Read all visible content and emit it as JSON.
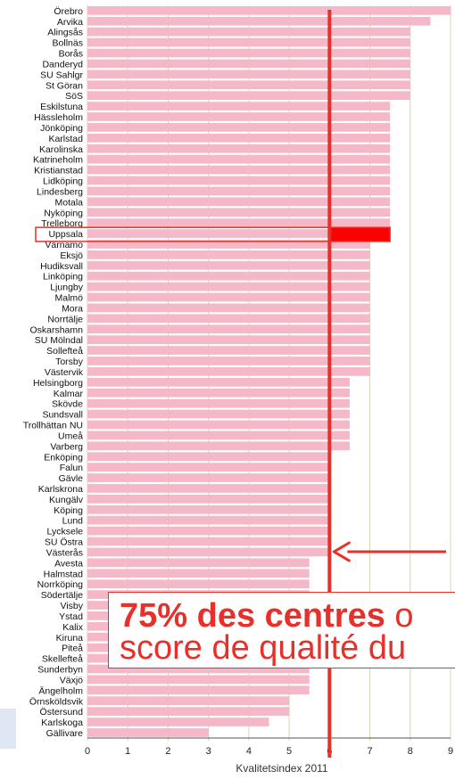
{
  "chart_data": {
    "type": "bar",
    "orientation": "horizontal",
    "categories": [
      "Örebro",
      "Arvika",
      "Alingsås",
      "Bollnäs",
      "Borås",
      "Danderyd",
      "SU Sahlgr",
      "St Göran",
      "SöS",
      "Eskilstuna",
      "Hässleholm",
      "Jönköping",
      "Karlstad",
      "Karolinska",
      "Katrineholm",
      "Kristianstad",
      "Lidköping",
      "Lindesberg",
      "Motala",
      "Nyköping",
      "Trelleborg",
      "Uppsala",
      "Värnamo",
      "Eksjö",
      "Hudiksvall",
      "Linköping",
      "Ljungby",
      "Malmö",
      "Mora",
      "Norrtälje",
      "Oskarshamn",
      "SU Mölndal",
      "Sollefteå",
      "Torsby",
      "Västervik",
      "Helsingborg",
      "Kalmar",
      "Skövde",
      "Sundsvall",
      "Trollhättan NU",
      "Umeå",
      "Varberg",
      "Enköping",
      "Falun",
      "Gävle",
      "Karlskrona",
      "Kungälv",
      "Köping",
      "Lund",
      "Lycksele",
      "SU Östra",
      "Västerås",
      "Avesta",
      "Halmstad",
      "Norrköping",
      "Södertälje",
      "Visby",
      "Ystad",
      "Kalix",
      "Kiruna",
      "Piteå",
      "Skellefteå",
      "Sunderbyn",
      "Växjö",
      "Ängelholm",
      "Örnsköldsvik",
      "Östersund",
      "Karlskoga",
      "Gällivare"
    ],
    "values": [
      9,
      8.5,
      8,
      8,
      8,
      8,
      8,
      8,
      8,
      7.5,
      7.5,
      7.5,
      7.5,
      7.5,
      7.5,
      7.5,
      7.5,
      7.5,
      7.5,
      7.5,
      7.5,
      7.5,
      7,
      7,
      7,
      7,
      7,
      7,
      7,
      7,
      7,
      7,
      7,
      7,
      7,
      6.5,
      6.5,
      6.5,
      6.5,
      6.5,
      6.5,
      6.5,
      6,
      6,
      6,
      6,
      6,
      6,
      6,
      6,
      6,
      6,
      5.5,
      5.5,
      5.5,
      5.5,
      5.5,
      5.5,
      5.5,
      5.5,
      5.5,
      5.5,
      5.5,
      5.5,
      5.5,
      5,
      5,
      4.5,
      3
    ],
    "highlight": "Uppsala",
    "xlabel": "Kvalitetsindex 2011",
    "xlim": [
      0,
      9
    ],
    "xticks": [
      "0",
      "1",
      "2",
      "3",
      "4",
      "5",
      "6",
      "7",
      "8",
      "9"
    ],
    "reference_line": 6,
    "grid": true,
    "colors": {
      "bar": "#f5b8c8",
      "highlight": "#ff0000",
      "line": "#e8302a",
      "grid": "#d2d8b4"
    },
    "annotation": {
      "bold": "75% des centres",
      "rest_line1": " o",
      "line2": "score de qualité du"
    }
  }
}
